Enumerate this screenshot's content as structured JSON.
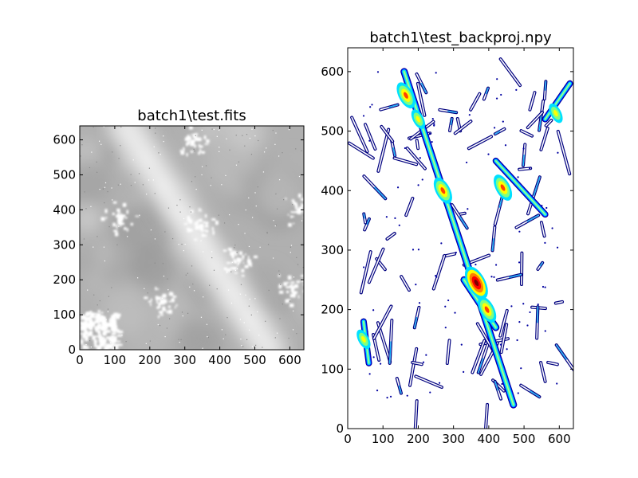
{
  "chart_data": [
    {
      "type": "heatmap",
      "title": "batch1\\test.fits",
      "colormap": "gray",
      "xlim": [
        0,
        640
      ],
      "ylim": [
        0,
        640
      ],
      "xticks": [
        0,
        100,
        200,
        300,
        400,
        500,
        600
      ],
      "yticks": [
        0,
        100,
        200,
        300,
        400,
        500,
        600
      ],
      "bright_band": {
        "from": [
          130,
          640
        ],
        "to": [
          540,
          0
        ]
      },
      "saturated_white_patches": [
        [
          50,
          70
        ],
        [
          110,
          380
        ],
        [
          230,
          140
        ],
        [
          340,
          360
        ],
        [
          450,
          260
        ],
        [
          600,
          180
        ],
        [
          620,
          400
        ],
        [
          320,
          600
        ]
      ]
    },
    {
      "type": "contour",
      "title": "batch1\\test_backproj.npy",
      "colormap": "jet",
      "xlim": [
        0,
        640
      ],
      "ylim": [
        0,
        640
      ],
      "xticks": [
        0,
        100,
        200,
        300,
        400,
        500,
        600
      ],
      "yticks": [
        0,
        100,
        200,
        300,
        400,
        500,
        600
      ],
      "main_ridge": {
        "from": [
          160,
          600
        ],
        "to": [
          470,
          40
        ]
      },
      "hotspots": [
        {
          "x": 165,
          "y": 560,
          "level": "high"
        },
        {
          "x": 200,
          "y": 520,
          "level": "mid"
        },
        {
          "x": 270,
          "y": 400,
          "level": "high"
        },
        {
          "x": 365,
          "y": 245,
          "level": "peak"
        },
        {
          "x": 395,
          "y": 200,
          "level": "high"
        },
        {
          "x": 440,
          "y": 405,
          "level": "high"
        },
        {
          "x": 590,
          "y": 530,
          "level": "mid"
        },
        {
          "x": 45,
          "y": 150,
          "level": "mid"
        }
      ]
    }
  ]
}
